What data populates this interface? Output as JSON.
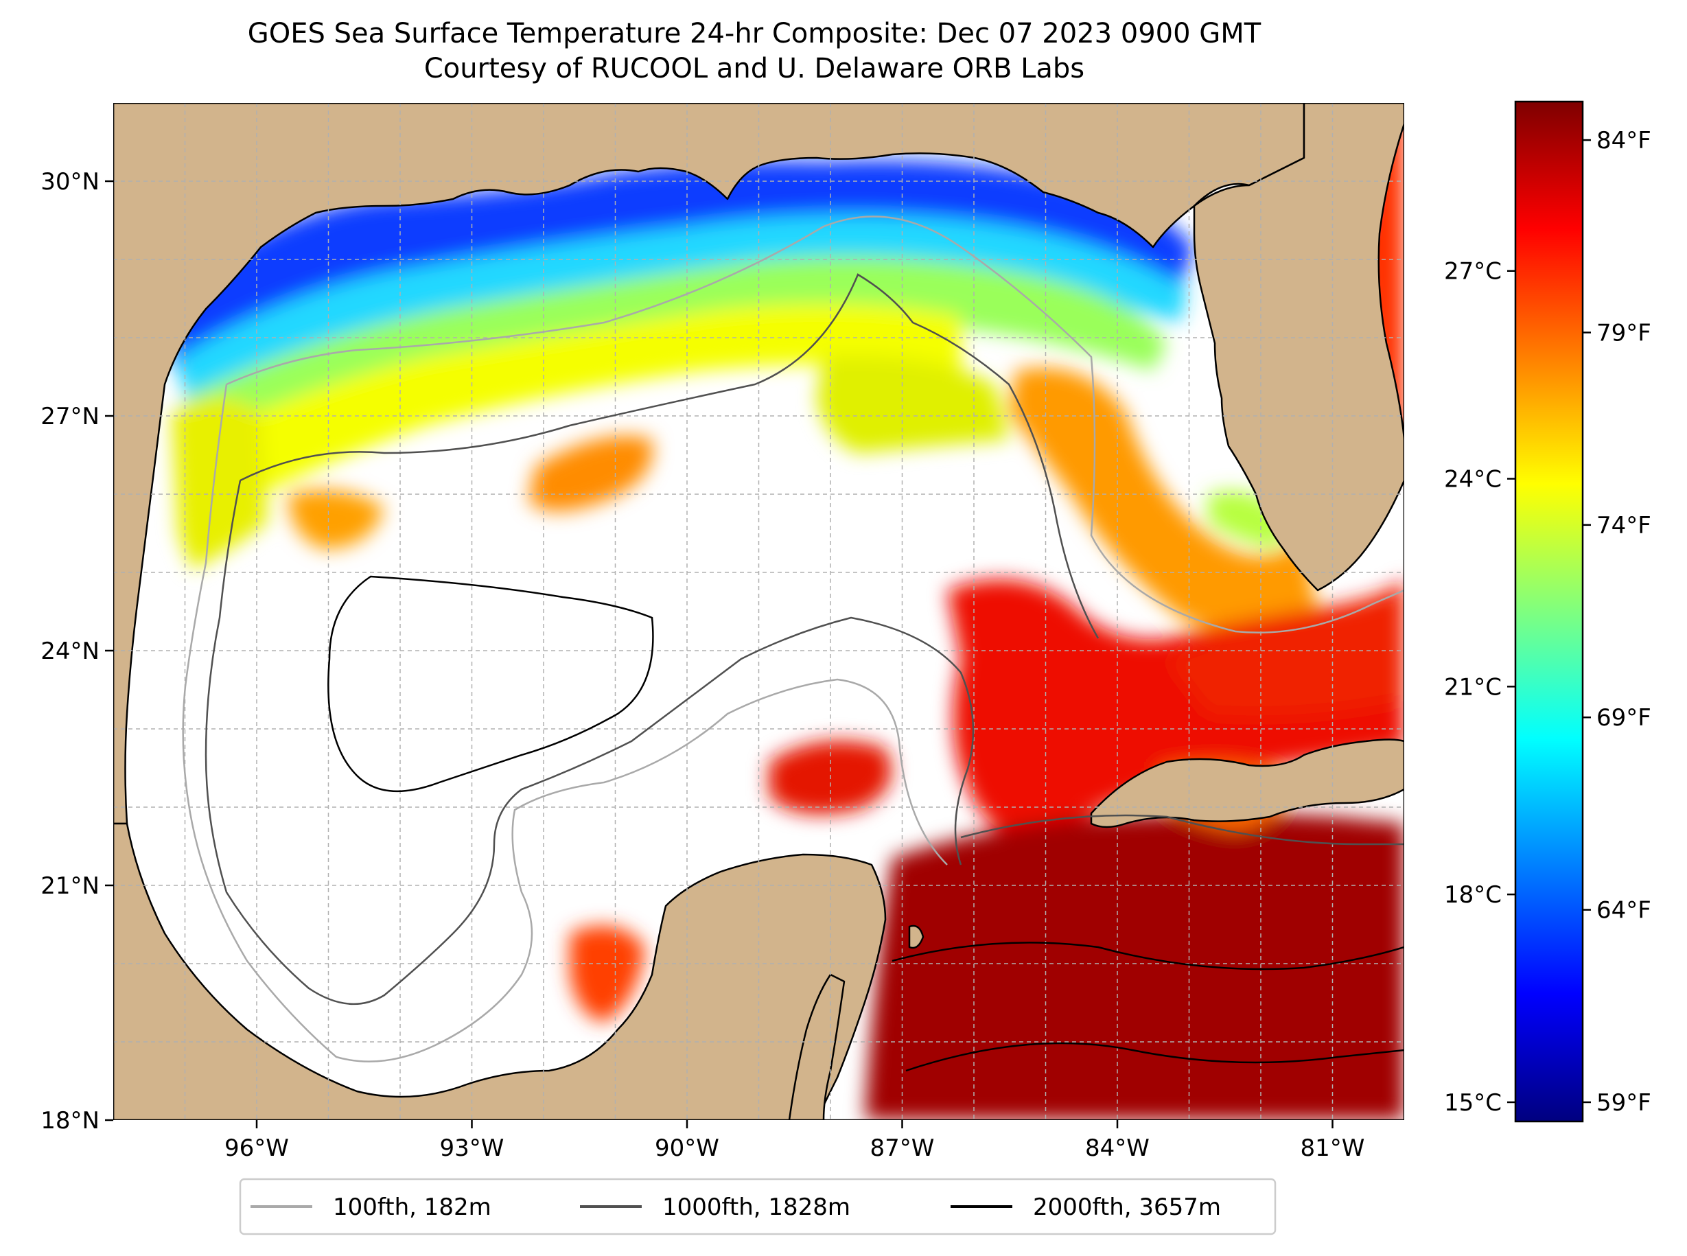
{
  "title": {
    "line1": "GOES Sea Surface Temperature 24-hr Composite: Dec 07 2023 0900 GMT",
    "line2": "Courtesy of RUCOOL and U. Delaware ORB Labs"
  },
  "map": {
    "lon_ticks": [
      {
        "lon": -96,
        "label": "96°W"
      },
      {
        "lon": -93,
        "label": "93°W"
      },
      {
        "lon": -90,
        "label": "90°W"
      },
      {
        "lon": -87,
        "label": "87°W"
      },
      {
        "lon": -84,
        "label": "84°W"
      },
      {
        "lon": -81,
        "label": "81°W"
      }
    ],
    "lat_ticks": [
      {
        "lat": 18,
        "label": "18°N"
      },
      {
        "lat": 21,
        "label": "21°N"
      },
      {
        "lat": 24,
        "label": "24°N"
      },
      {
        "lat": 27,
        "label": "27°N"
      },
      {
        "lat": 30,
        "label": "30°N"
      }
    ],
    "lon_range": [
      -98,
      -80
    ],
    "lat_range": [
      18,
      31
    ],
    "land_color": "#d2b48c",
    "ocean_nodata_color": "#ffffff"
  },
  "colorbar": {
    "colormap": "jet",
    "celsius_ticks": [
      {
        "value": 15,
        "label": "15°C"
      },
      {
        "value": 18,
        "label": "18°C"
      },
      {
        "value": 21,
        "label": "21°C"
      },
      {
        "value": 24,
        "label": "24°C"
      },
      {
        "value": 27,
        "label": "27°C"
      }
    ],
    "fahrenheit_ticks": [
      {
        "value": 59,
        "label": "59°F"
      },
      {
        "value": 64,
        "label": "64°F"
      },
      {
        "value": 69,
        "label": "69°F"
      },
      {
        "value": 74,
        "label": "74°F"
      },
      {
        "value": 79,
        "label": "79°F"
      },
      {
        "value": 84,
        "label": "84°F"
      }
    ],
    "range_f": [
      58.5,
      85
    ]
  },
  "legend": [
    {
      "label": "100fth, 182m",
      "color": "#a9a9a9"
    },
    {
      "label": "1000fth, 1828m",
      "color": "#505050"
    },
    {
      "label": "2000fth, 3657m",
      "color": "#000000"
    }
  ]
}
